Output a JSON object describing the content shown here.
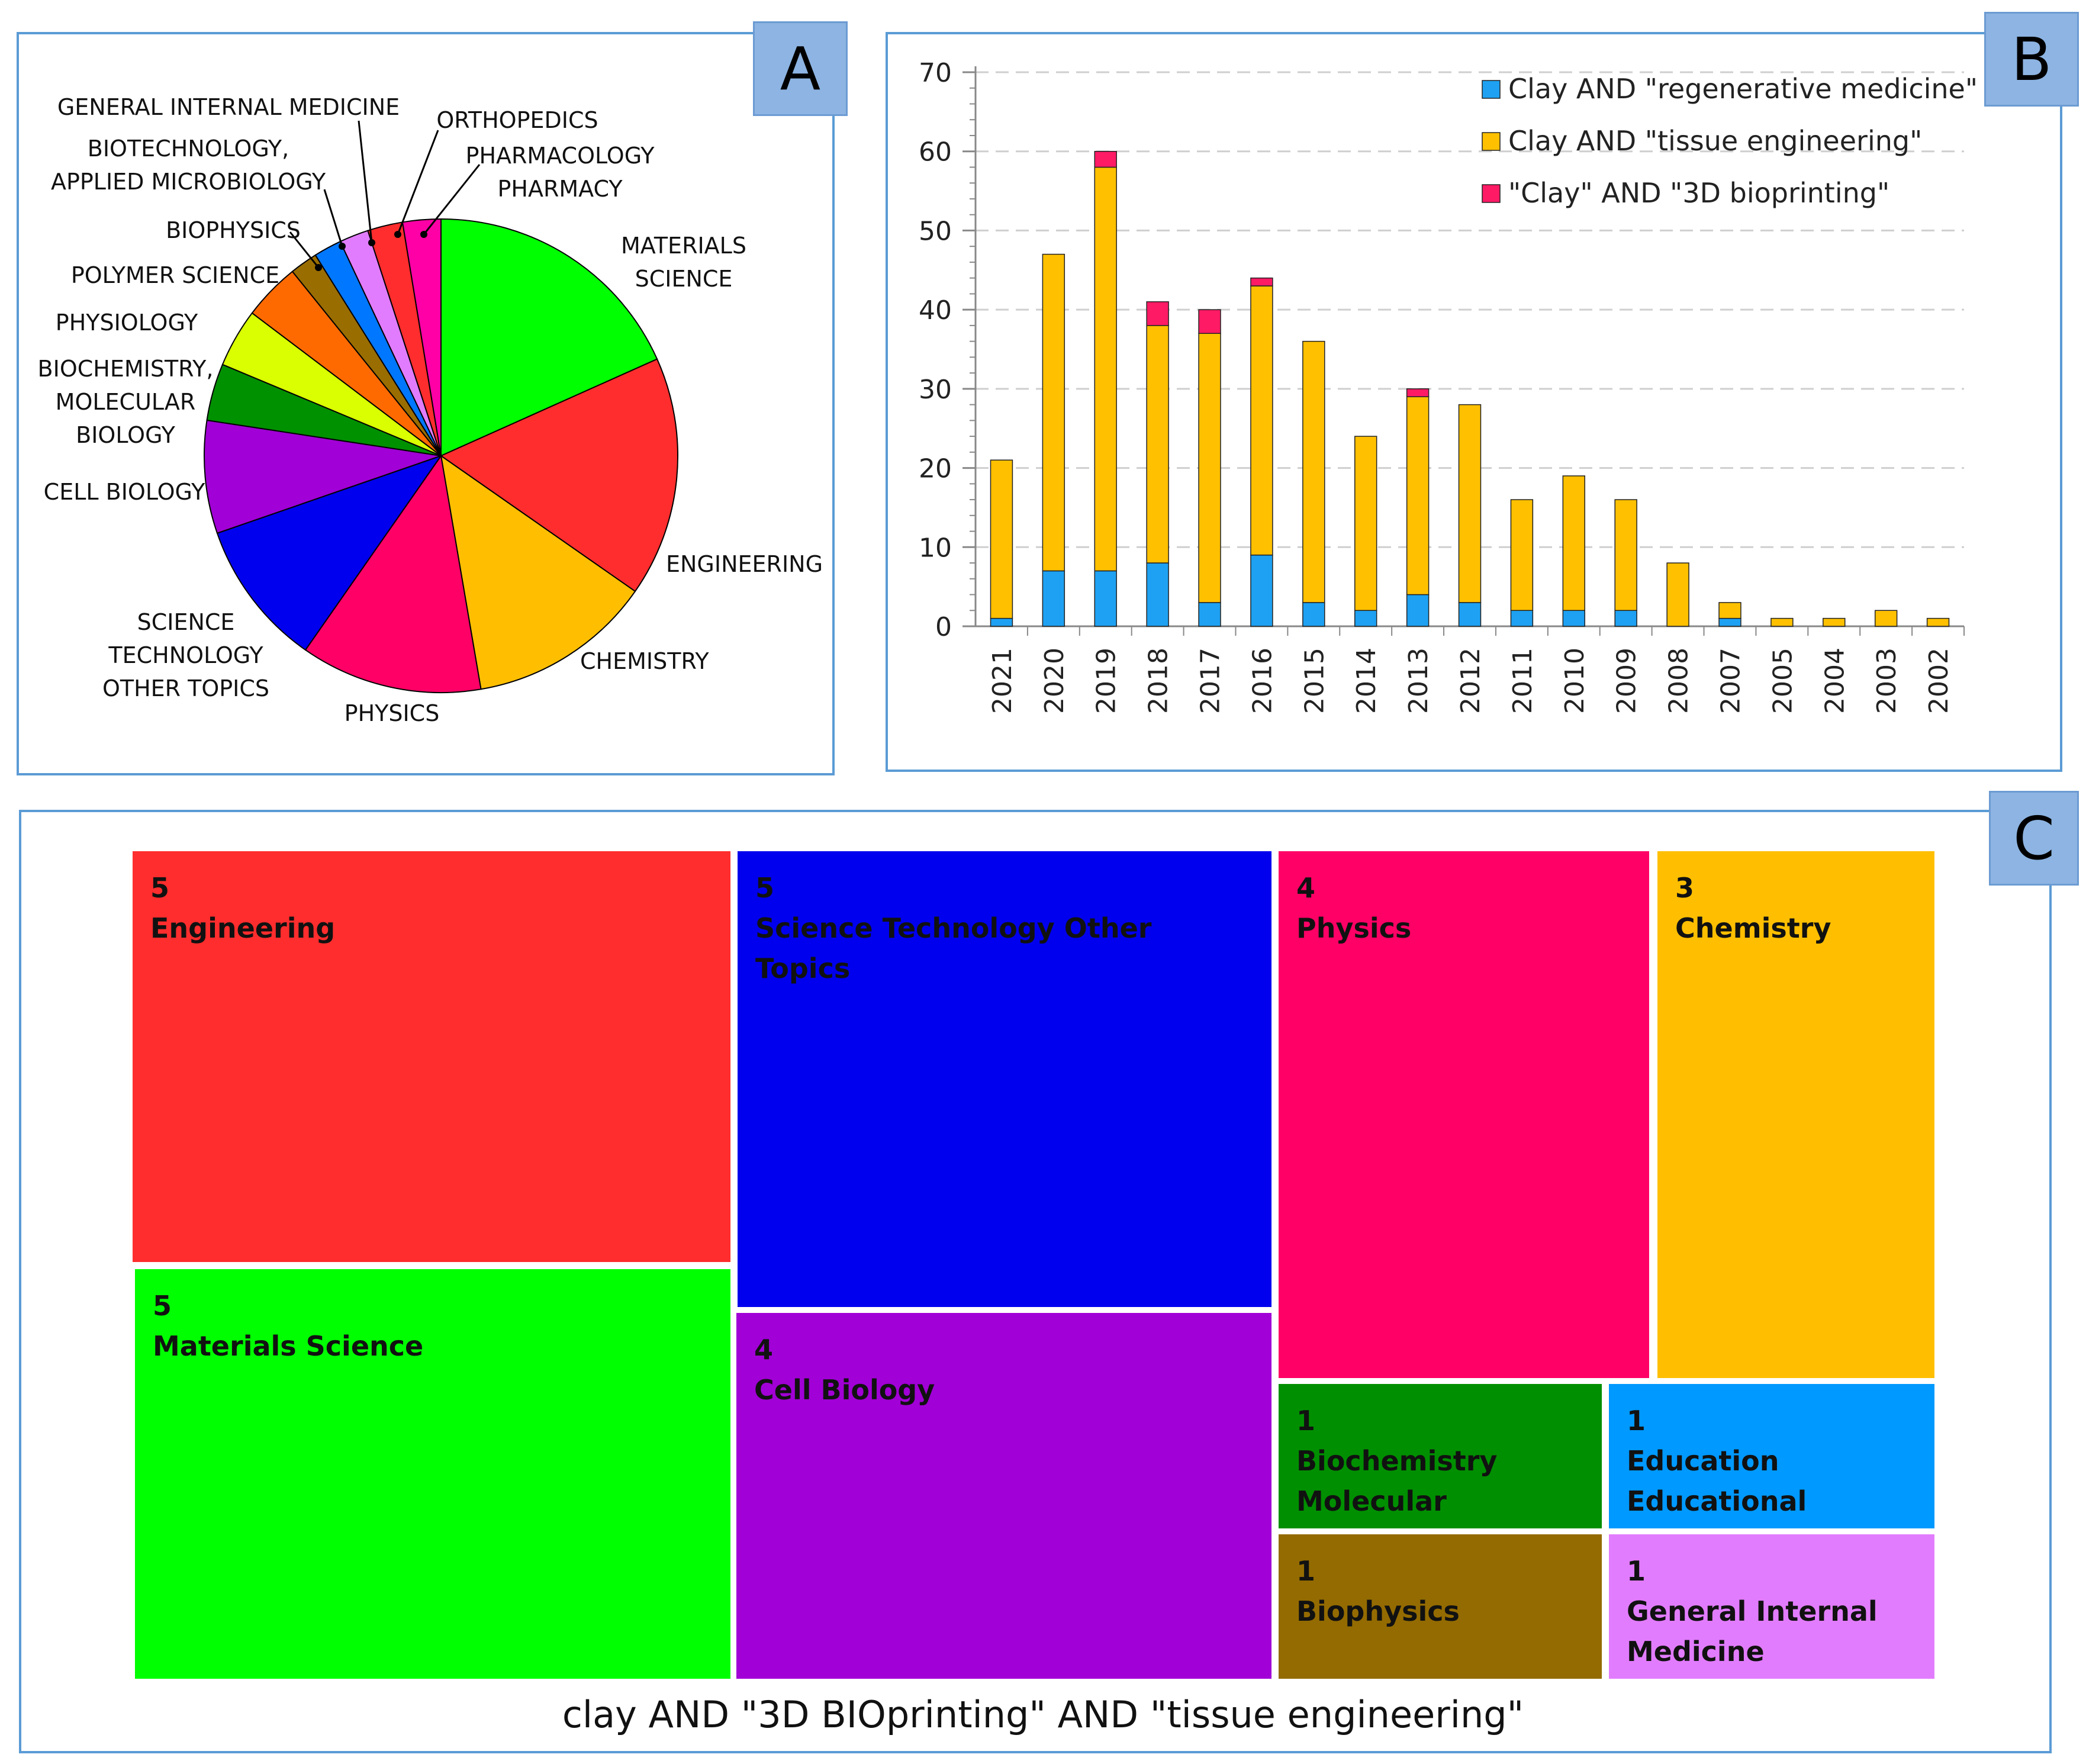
{
  "panel_a": {
    "badge": "A",
    "chart_data": {
      "type": "pie",
      "title": "",
      "labels": [
        "MATERIALS SCIENCE",
        "ENGINEERING",
        "CHEMISTRY",
        "PHYSICS",
        "SCIENCE TECHNOLOGY OTHER TOPICS",
        "CELL BIOLOGY",
        "BIOCHEMISTRY, MOLECULAR BIOLOGY",
        "PHYSIOLOGY",
        "POLYMER SCIENCE",
        "BIOPHYSICS",
        "BIOTECHNOLOGY, APPLIED MICROBIOLOGY",
        "GENERAL INTERNAL MEDICINE",
        "ORTHOPEDICS",
        "PHARMACOLOGY PHARMACY"
      ],
      "values": [
        18.3,
        16.4,
        12.6,
        12.4,
        10.0,
        7.7,
        3.9,
        4.0,
        3.9,
        1.9,
        1.9,
        2.0,
        2.4,
        2.6
      ],
      "colors": [
        "#00ff00",
        "#ff2d2d",
        "#ffbf00",
        "#ff0066",
        "#0000ee",
        "#a100d6",
        "#009100",
        "#d9ff00",
        "#ff6a00",
        "#9a6d00",
        "#0077ff",
        "#e27cff",
        "#ff2d2d",
        "#ff00a6"
      ]
    }
  },
  "panel_b": {
    "badge": "B",
    "chart_data": {
      "type": "bar",
      "stacked": true,
      "categories": [
        "2021",
        "2020",
        "2019",
        "2018",
        "2017",
        "2016",
        "2015",
        "2014",
        "2013",
        "2012",
        "2011",
        "2010",
        "2009",
        "2008",
        "2007",
        "2005",
        "2004",
        "2003",
        "2002"
      ],
      "series": [
        {
          "name": "Clay AND \"regenerative medicine\"",
          "color": "#1ea1f2",
          "values": [
            1,
            7,
            7,
            8,
            3,
            9,
            3,
            2,
            4,
            3,
            2,
            2,
            2,
            0,
            1,
            0,
            0,
            0,
            0
          ]
        },
        {
          "name": "Clay AND \"tissue engineering\"",
          "color": "#ffc000",
          "values": [
            20,
            40,
            51,
            30,
            34,
            34,
            33,
            22,
            25,
            25,
            14,
            17,
            14,
            8,
            2,
            1,
            1,
            2,
            1
          ]
        },
        {
          "name": "\"Clay\" AND \"3D bioprinting\"",
          "color": "#ff1a66",
          "values": [
            0,
            0,
            2,
            3,
            3,
            1,
            0,
            0,
            1,
            0,
            0,
            0,
            0,
            0,
            0,
            0,
            0,
            0,
            0
          ]
        }
      ],
      "yticks": [
        "0",
        "10",
        "20",
        "30",
        "40",
        "50",
        "60",
        "70"
      ],
      "ylim": [
        0,
        70
      ],
      "xlabel": "",
      "ylabel": ""
    }
  },
  "panel_c": {
    "badge": "C",
    "caption": "clay AND \"3D BIOprinting\" AND \"tissue engineering\"",
    "chart_data": {
      "type": "treemap",
      "items": [
        {
          "label": "Engineering",
          "value": "5",
          "color": "#ff2d2d"
        },
        {
          "label": "Materials Science",
          "value": "5",
          "color": "#00ff00"
        },
        {
          "label": "Science Technology Other Topics",
          "value": "5",
          "color": "#0000ee"
        },
        {
          "label": "Cell Biology",
          "value": "4",
          "color": "#a100d6"
        },
        {
          "label": "Physics",
          "value": "4",
          "color": "#ff0066"
        },
        {
          "label": "Chemistry",
          "value": "3",
          "color": "#ffbf00"
        },
        {
          "label": "Biochemistry Molecular",
          "value": "1",
          "color": "#008f00"
        },
        {
          "label": "Education Educational",
          "value": "1",
          "color": "#0099ff"
        },
        {
          "label": "Biophysics",
          "value": "1",
          "color": "#946b00"
        },
        {
          "label": "General Internal Medicine",
          "value": "1",
          "color": "#e27cff"
        }
      ]
    }
  }
}
